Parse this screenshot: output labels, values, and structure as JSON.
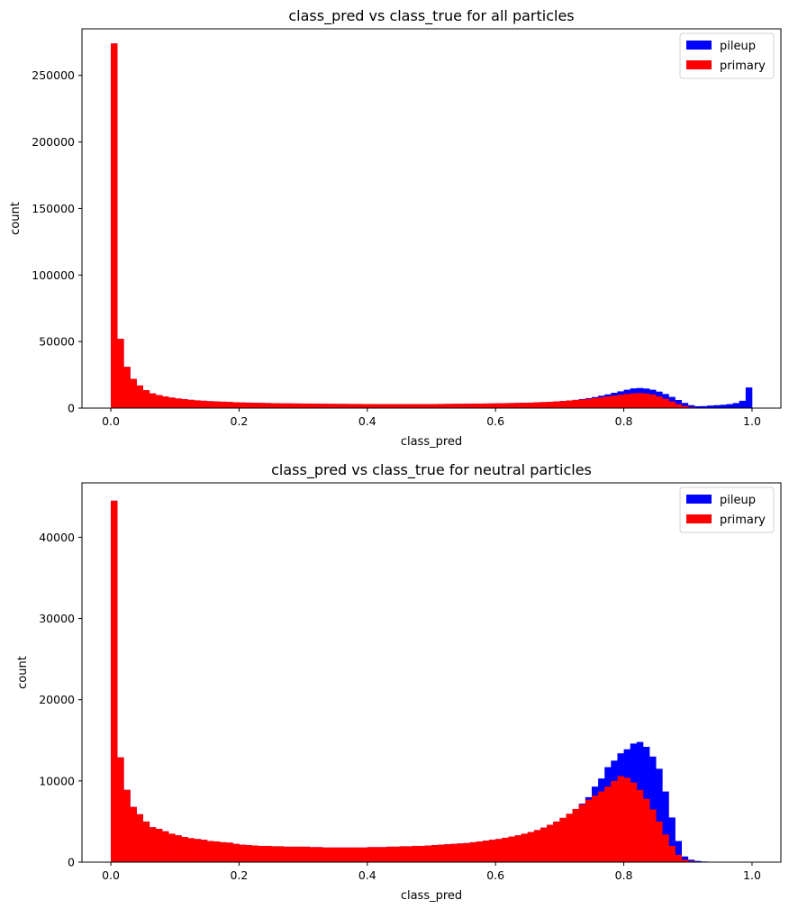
{
  "chart_data": [
    {
      "type": "bar",
      "title": "class_pred vs class_true for all particles",
      "xlabel": "class_pred",
      "ylabel": "count",
      "xlim": [
        -0.045,
        1.045
      ],
      "ylim": [
        0,
        285000
      ],
      "xticks": [
        "0.0",
        "0.2",
        "0.4",
        "0.6",
        "0.8",
        "1.0"
      ],
      "yticks": [
        "0",
        "50000",
        "100000",
        "150000",
        "200000",
        "250000"
      ],
      "grid": false,
      "legend_position": "top-right",
      "bin_width": 0.01,
      "x": [
        0.005,
        0.015,
        0.025,
        0.035,
        0.045,
        0.055,
        0.065,
        0.075,
        0.085,
        0.095,
        0.105,
        0.115,
        0.125,
        0.135,
        0.145,
        0.155,
        0.165,
        0.175,
        0.185,
        0.195,
        0.205,
        0.215,
        0.225,
        0.235,
        0.245,
        0.255,
        0.265,
        0.275,
        0.285,
        0.295,
        0.305,
        0.315,
        0.325,
        0.335,
        0.345,
        0.355,
        0.365,
        0.375,
        0.385,
        0.395,
        0.405,
        0.415,
        0.425,
        0.435,
        0.445,
        0.455,
        0.465,
        0.475,
        0.485,
        0.495,
        0.505,
        0.515,
        0.525,
        0.535,
        0.545,
        0.555,
        0.565,
        0.575,
        0.585,
        0.595,
        0.605,
        0.615,
        0.625,
        0.635,
        0.645,
        0.655,
        0.665,
        0.675,
        0.685,
        0.695,
        0.705,
        0.715,
        0.725,
        0.735,
        0.745,
        0.755,
        0.765,
        0.775,
        0.785,
        0.795,
        0.805,
        0.815,
        0.825,
        0.835,
        0.845,
        0.855,
        0.865,
        0.875,
        0.885,
        0.895,
        0.905,
        0.915,
        0.925,
        0.935,
        0.945,
        0.955,
        0.965,
        0.975,
        0.985,
        0.995
      ],
      "series": [
        {
          "name": "pileup",
          "color": "#0000ff",
          "values": [
            274000,
            52000,
            31000,
            22000,
            17000,
            13500,
            11000,
            9800,
            8800,
            7900,
            7200,
            6700,
            6200,
            5800,
            5500,
            5200,
            5000,
            4800,
            4600,
            4400,
            4200,
            4100,
            4000,
            3900,
            3800,
            3700,
            3600,
            3550,
            3500,
            3450,
            3400,
            3350,
            3300,
            3250,
            3200,
            3150,
            3150,
            3100,
            3100,
            3050,
            3050,
            3000,
            3000,
            3000,
            3000,
            3000,
            3000,
            3000,
            3000,
            3000,
            3050,
            3100,
            3150,
            3200,
            3250,
            3300,
            3350,
            3400,
            3450,
            3500,
            3600,
            3700,
            3800,
            3900,
            4000,
            4100,
            4300,
            4500,
            4700,
            5000,
            5300,
            5700,
            6200,
            6800,
            7500,
            8300,
            9300,
            10300,
            11500,
            12600,
            13800,
            14800,
            15100,
            14700,
            13800,
            12400,
            10600,
            8400,
            6100,
            3900,
            2200,
            1400,
            1500,
            1900,
            2200,
            2500,
            3000,
            3800,
            5500,
            15500
          ]
        },
        {
          "name": "primary",
          "color": "#ff0000",
          "values": [
            274000,
            52000,
            31000,
            22000,
            17000,
            13500,
            11000,
            9800,
            8800,
            7900,
            7200,
            6700,
            6200,
            5800,
            5500,
            5200,
            5000,
            4800,
            4600,
            4400,
            4200,
            4100,
            4000,
            3900,
            3800,
            3700,
            3600,
            3550,
            3500,
            3450,
            3400,
            3350,
            3300,
            3250,
            3200,
            3150,
            3150,
            3100,
            3100,
            3050,
            3050,
            3000,
            3000,
            3000,
            3000,
            3000,
            3000,
            3000,
            3000,
            3000,
            3050,
            3100,
            3150,
            3200,
            3250,
            3300,
            3350,
            3400,
            3450,
            3500,
            3600,
            3700,
            3800,
            3900,
            4000,
            4100,
            4300,
            4500,
            4700,
            5000,
            5300,
            5700,
            6100,
            6500,
            7000,
            7600,
            8200,
            8800,
            9400,
            10000,
            10600,
            11100,
            11300,
            11000,
            10200,
            8800,
            7000,
            5000,
            3000,
            1600,
            700,
            300,
            150,
            100,
            80,
            60,
            50,
            40,
            30,
            20
          ]
        }
      ]
    },
    {
      "type": "bar",
      "title": "class_pred vs class_true for neutral particles",
      "xlabel": "class_pred",
      "ylabel": "count",
      "xlim": [
        -0.045,
        1.045
      ],
      "ylim": [
        0,
        46700
      ],
      "xticks": [
        "0.0",
        "0.2",
        "0.4",
        "0.6",
        "0.8",
        "1.0"
      ],
      "yticks": [
        "0",
        "10000",
        "20000",
        "30000",
        "40000"
      ],
      "grid": false,
      "legend_position": "top-right",
      "bin_width": 0.01,
      "x": [
        0.005,
        0.015,
        0.025,
        0.035,
        0.045,
        0.055,
        0.065,
        0.075,
        0.085,
        0.095,
        0.105,
        0.115,
        0.125,
        0.135,
        0.145,
        0.155,
        0.165,
        0.175,
        0.185,
        0.195,
        0.205,
        0.215,
        0.225,
        0.235,
        0.245,
        0.255,
        0.265,
        0.275,
        0.285,
        0.295,
        0.305,
        0.315,
        0.325,
        0.335,
        0.345,
        0.355,
        0.365,
        0.375,
        0.385,
        0.395,
        0.405,
        0.415,
        0.425,
        0.435,
        0.445,
        0.455,
        0.465,
        0.475,
        0.485,
        0.495,
        0.505,
        0.515,
        0.525,
        0.535,
        0.545,
        0.555,
        0.565,
        0.575,
        0.585,
        0.595,
        0.605,
        0.615,
        0.625,
        0.635,
        0.645,
        0.655,
        0.665,
        0.675,
        0.685,
        0.695,
        0.705,
        0.715,
        0.725,
        0.735,
        0.745,
        0.755,
        0.765,
        0.775,
        0.785,
        0.795,
        0.805,
        0.815,
        0.825,
        0.835,
        0.845,
        0.855,
        0.865,
        0.875,
        0.885,
        0.895,
        0.905,
        0.915,
        0.925,
        0.935,
        0.945,
        0.955,
        0.965,
        0.975,
        0.985,
        0.995
      ],
      "series": [
        {
          "name": "pileup",
          "color": "#0000ff",
          "values": [
            44500,
            12900,
            8900,
            6800,
            5900,
            5000,
            4300,
            4100,
            3800,
            3500,
            3300,
            3100,
            2950,
            2850,
            2750,
            2600,
            2550,
            2450,
            2400,
            2250,
            2150,
            2100,
            2050,
            2000,
            2000,
            1950,
            1950,
            1900,
            1900,
            1900,
            1900,
            1850,
            1850,
            1800,
            1800,
            1800,
            1800,
            1800,
            1800,
            1800,
            1850,
            1850,
            1850,
            1900,
            1900,
            1950,
            1950,
            2000,
            2000,
            2050,
            2100,
            2150,
            2200,
            2250,
            2300,
            2350,
            2450,
            2550,
            2650,
            2750,
            2850,
            3000,
            3150,
            3300,
            3500,
            3700,
            3950,
            4250,
            4600,
            5000,
            5450,
            5950,
            6550,
            7200,
            8000,
            9300,
            10300,
            11700,
            12500,
            13400,
            13900,
            14600,
            14800,
            14200,
            13000,
            11500,
            8700,
            5500,
            2600,
            700,
            300,
            150,
            80,
            50,
            40,
            30,
            25,
            20,
            15,
            10
          ]
        },
        {
          "name": "primary",
          "color": "#ff0000",
          "values": [
            44500,
            12900,
            8900,
            6800,
            5900,
            5000,
            4300,
            4100,
            3800,
            3500,
            3300,
            3100,
            2950,
            2850,
            2750,
            2600,
            2550,
            2450,
            2400,
            2250,
            2150,
            2100,
            2050,
            2000,
            2000,
            1950,
            1950,
            1900,
            1900,
            1900,
            1900,
            1850,
            1850,
            1800,
            1800,
            1800,
            1800,
            1800,
            1800,
            1800,
            1850,
            1850,
            1850,
            1900,
            1900,
            1950,
            1950,
            2000,
            2000,
            2050,
            2100,
            2150,
            2200,
            2250,
            2300,
            2350,
            2450,
            2550,
            2650,
            2750,
            2850,
            3000,
            3150,
            3300,
            3500,
            3700,
            3950,
            4250,
            4600,
            5000,
            5450,
            5950,
            6550,
            7100,
            7700,
            8200,
            8700,
            9300,
            10000,
            10600,
            10400,
            9800,
            8900,
            7800,
            6500,
            5000,
            3400,
            2000,
            900,
            300,
            120,
            60,
            30,
            20,
            15,
            10,
            8,
            6,
            4,
            2
          ]
        }
      ]
    }
  ]
}
